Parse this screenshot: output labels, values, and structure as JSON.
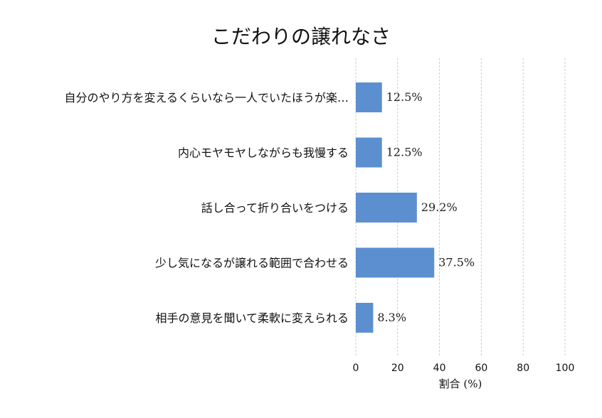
{
  "chart_data": {
    "type": "bar",
    "orientation": "horizontal",
    "title": "こだわりの譲れなさ",
    "xlabel": "割合 (%)",
    "ylabel": "",
    "xlim": [
      0,
      100
    ],
    "xticks": [
      0,
      20,
      40,
      60,
      80,
      100
    ],
    "grid": "vertical-dashed",
    "bar_color": "#5b8fd0",
    "categories": [
      "自分のやり方を変えるくらいなら一人でいたほうが楽…",
      "内心モヤモヤしながらも我慢する",
      "話し合って折り合いをつける",
      "少し気になるが譲れる範囲で合わせる",
      "相手の意見を聞いて柔軟に変えられる"
    ],
    "values": [
      12.5,
      12.5,
      29.2,
      37.5,
      8.3
    ],
    "value_labels": [
      "12.5%",
      "12.5%",
      "29.2%",
      "37.5%",
      "8.3%"
    ]
  }
}
